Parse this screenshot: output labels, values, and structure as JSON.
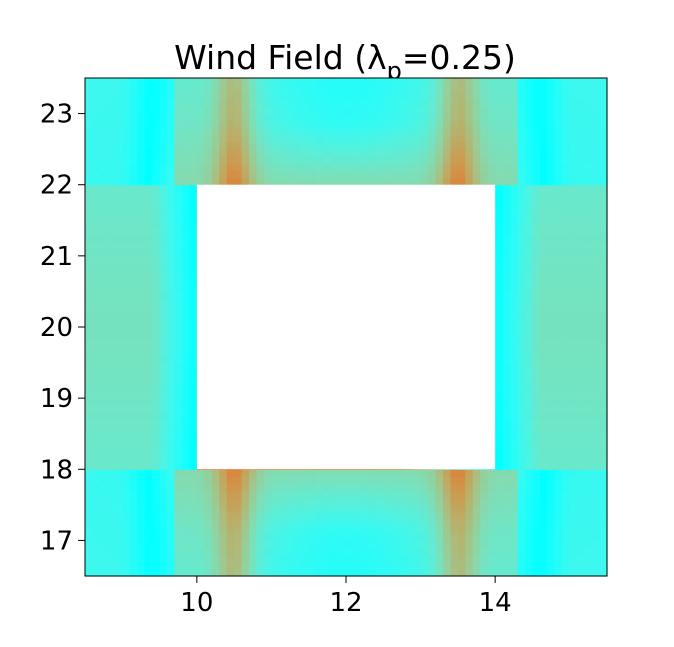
{
  "chart_data": {
    "type": "heatmap",
    "title": "Wind Field (λ",
    "title_sub": "p",
    "title_suffix": "=0.25)",
    "xlabel": "",
    "ylabel": "",
    "xlim": [
      8.5,
      15.5
    ],
    "ylim": [
      16.5,
      23.5
    ],
    "x_ticks": [
      10,
      12,
      14
    ],
    "y_ticks": [
      17,
      18,
      19,
      20,
      21,
      22,
      23
    ],
    "obstacle": {
      "x": [
        10,
        14
      ],
      "y": [
        18,
        22
      ]
    },
    "colormap": "rainbow",
    "grid": false,
    "colors": {
      "low": "#7a1bff",
      "mid_low": "#1f8ff0",
      "mid": "#10c4e0",
      "high": "#62f7c3",
      "obstacle": "#ffffff"
    }
  }
}
